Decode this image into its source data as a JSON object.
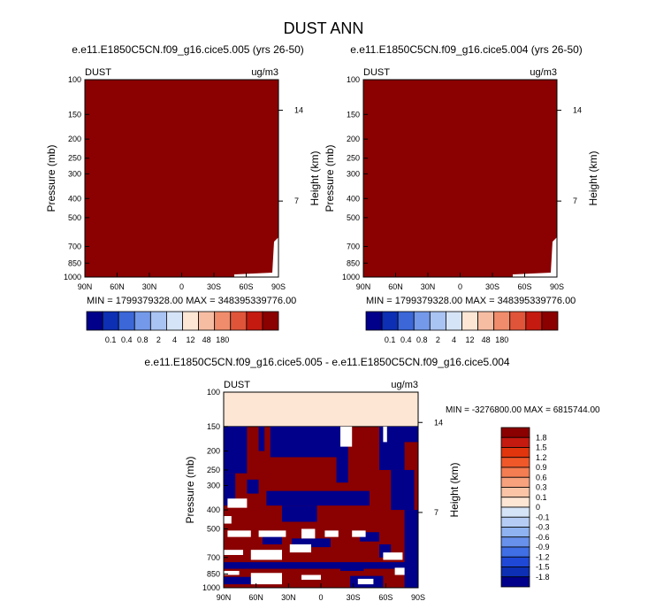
{
  "main_title": "DUST ANN",
  "colors": {
    "dark_red": "#8b0000",
    "navy": "#00008b",
    "white": "#ffffff",
    "peach": "#fde6d4",
    "frame": "#000000"
  },
  "chart_data": [
    {
      "type": "heatmap",
      "panel": "top-left",
      "title": "e.e11.E1850C5CN.f09_g16.cice5.005 (yrs 26-50)",
      "left_label": "DUST",
      "right_label": "ug/m3",
      "ylabel": "Pressure (mb)",
      "ylabel_right": "Height (km)",
      "x_ticks": [
        "90N",
        "60N",
        "30N",
        "0",
        "30S",
        "60S",
        "90S"
      ],
      "y_ticks": [
        "100",
        "150",
        "200",
        "250",
        "300",
        "400",
        "500",
        "700",
        "850",
        "1000"
      ],
      "y_ticks_right": [
        "14",
        "7"
      ],
      "xlim": [
        90,
        -90
      ],
      "ylim": [
        1000,
        100
      ],
      "min_max_text": "MIN = 1799379328.00  MAX = 348395339776.00",
      "colorbar_labels": [
        "0.1",
        "0.4",
        "0.8",
        "2",
        "4",
        "12",
        "48",
        "180"
      ],
      "colorbar_colors": [
        "#00008b",
        "#0d2fb3",
        "#3b67d9",
        "#7499ea",
        "#a9c3f2",
        "#d6e4f7",
        "#fde6d4",
        "#f7bda3",
        "#f08c6b",
        "#e0553a",
        "#c41a10",
        "#8b0000"
      ],
      "field_summary": "field exceeds 180 everywhere (dark red); white notch near 90S 700-1000 mb"
    },
    {
      "type": "heatmap",
      "panel": "top-right",
      "title": "e.e11.E1850C5CN.f09_g16.cice5.004 (yrs 26-50)",
      "left_label": "DUST",
      "right_label": "ug/m3",
      "ylabel": "Pressure (mb)",
      "ylabel_right": "Height (km)",
      "x_ticks": [
        "90N",
        "60N",
        "30N",
        "0",
        "30S",
        "60S",
        "90S"
      ],
      "y_ticks": [
        "100",
        "150",
        "200",
        "250",
        "300",
        "400",
        "500",
        "700",
        "850",
        "1000"
      ],
      "y_ticks_right": [
        "14",
        "7"
      ],
      "xlim": [
        90,
        -90
      ],
      "ylim": [
        1000,
        100
      ],
      "min_max_text": "MIN = 1799379328.00  MAX = 348395339776.00",
      "colorbar_labels": [
        "0.1",
        "0.4",
        "0.8",
        "2",
        "4",
        "12",
        "48",
        "180"
      ],
      "colorbar_colors": [
        "#00008b",
        "#0d2fb3",
        "#3b67d9",
        "#7499ea",
        "#a9c3f2",
        "#d6e4f7",
        "#fde6d4",
        "#f7bda3",
        "#f08c6b",
        "#e0553a",
        "#c41a10",
        "#8b0000"
      ],
      "field_summary": "field exceeds 180 everywhere (dark red); white notch near 90S 700-1000 mb"
    },
    {
      "type": "heatmap",
      "panel": "bottom-difference",
      "title": "e.e11.E1850C5CN.f09_g16.cice5.005 - e.e11.E1850C5CN.f09_g16.cice5.004",
      "left_label": "DUST",
      "right_label": "ug/m3",
      "ylabel": "Pressure (mb)",
      "ylabel_right": "Height (km)",
      "x_ticks": [
        "90N",
        "60N",
        "30N",
        "0",
        "30S",
        "60S",
        "90S"
      ],
      "y_ticks": [
        "100",
        "150",
        "200",
        "250",
        "300",
        "400",
        "500",
        "700",
        "850",
        "1000"
      ],
      "y_ticks_right": [
        "14",
        "7"
      ],
      "xlim": [
        90,
        -90
      ],
      "ylim": [
        1000,
        100
      ],
      "min_max_text": "MIN = -3276800.00  MAX = 6815744.00",
      "colorbar_labels": [
        "1.8",
        "1.5",
        "1.2",
        "0.9",
        "0.6",
        "0.3",
        "0.1",
        "0",
        "-0.1",
        "-0.3",
        "-0.6",
        "-0.9",
        "-1.2",
        "-1.5",
        "-1.8"
      ],
      "colorbar_colors": [
        "#8b0000",
        "#c41a10",
        "#e0350d",
        "#f0582a",
        "#f57d52",
        "#f7a17d",
        "#fbc4a6",
        "#fde6d4",
        "#d6e4f7",
        "#b5cdf5",
        "#8fb2f0",
        "#6791eb",
        "#3f6ee5",
        "#1f48d6",
        "#0d2fb3",
        "#00008b"
      ],
      "field_summary": "0 (peach) between 100 and 150 mb; alternating large positive (dark red) and negative (navy) bands below 150 mb, with zero (white) patches"
    }
  ]
}
